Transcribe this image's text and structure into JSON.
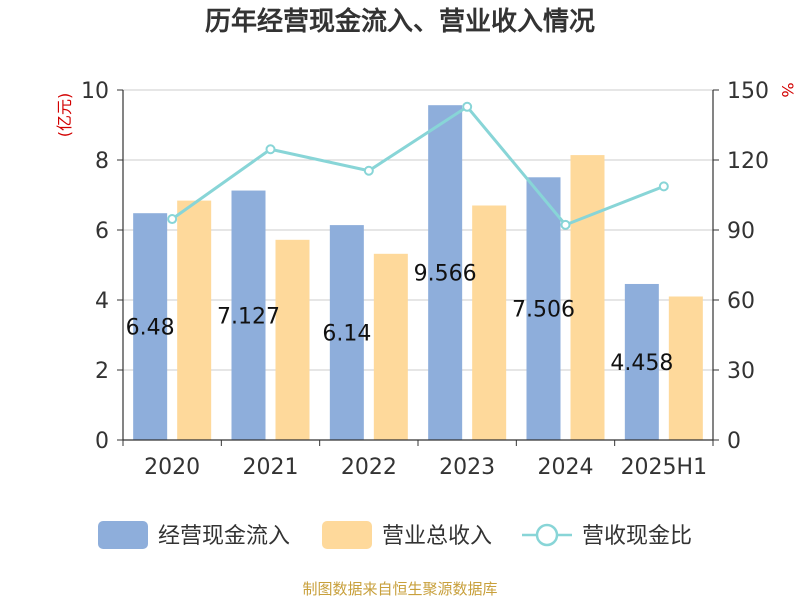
{
  "chart_data": {
    "type": "bar",
    "title": "历年经营现金流入、营业收入情况",
    "categories": [
      "2020",
      "2021",
      "2022",
      "2023",
      "2024",
      "2025H1"
    ],
    "left_unit": "(亿元)",
    "right_unit": "%",
    "ylim_left": [
      0,
      10
    ],
    "ylim_right": [
      0,
      150
    ],
    "yticks_left": [
      "0",
      "2",
      "4",
      "6",
      "8",
      "10"
    ],
    "yticks_right": [
      "0",
      "30",
      "60",
      "90",
      "120",
      "150"
    ],
    "grid": true,
    "legend_position": "bottom",
    "series": [
      {
        "name": "经营现金流入",
        "kind": "bar",
        "axis": "left",
        "color": "#8eaedb",
        "values": [
          6.48,
          7.127,
          6.14,
          9.566,
          7.506,
          4.458
        ],
        "labels": [
          "6.48",
          "7.127",
          "6.14",
          "9.566",
          "7.506",
          "4.458"
        ]
      },
      {
        "name": "营业总收入",
        "kind": "bar",
        "axis": "left",
        "color": "#fed99b",
        "values": [
          6.84,
          5.72,
          5.32,
          6.7,
          8.14,
          4.1
        ]
      },
      {
        "name": "营收现金比",
        "kind": "line",
        "axis": "right",
        "color": "#88d5d7",
        "values": [
          94.7,
          124.6,
          115.4,
          142.8,
          92.2,
          108.7
        ]
      }
    ],
    "source": "制图数据来自恒生聚源数据库"
  }
}
